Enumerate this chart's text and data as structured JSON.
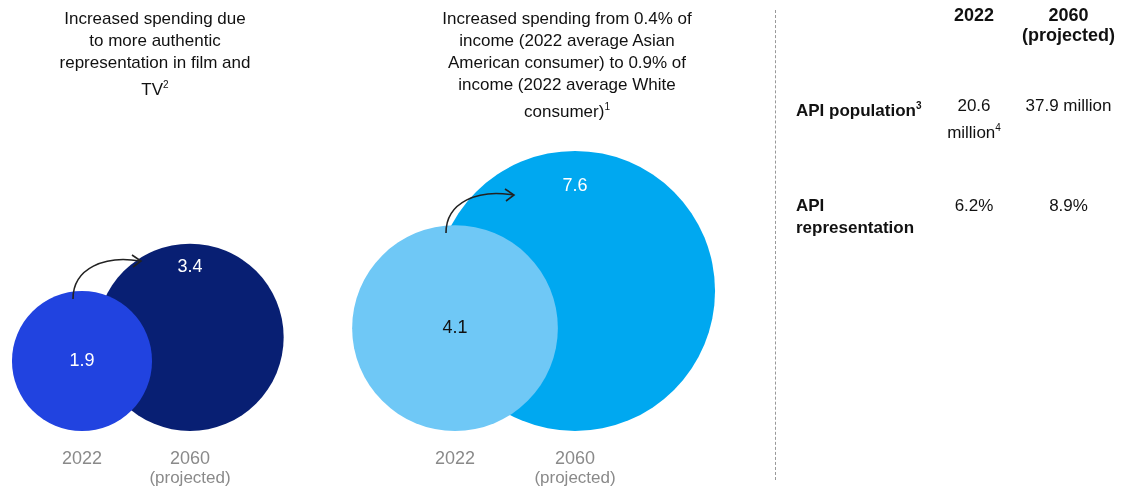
{
  "chart_data": [
    {
      "type": "other",
      "title": "Increased spending due to more authentic representation in film and TV$^{2}$",
      "categories": [
        "2022",
        "2060 (projected)"
      ],
      "values": [
        1.9,
        3.4
      ],
      "colors": [
        "#2143e0",
        "#081f73"
      ],
      "data_labels": true
    },
    {
      "type": "other",
      "title": "Increased spending from 0.4% of income (2022 average Asian American consumer) to 0.9% of income (2022 average White consumer)$^{1}$",
      "categories": [
        "2022",
        "2060 (projected)"
      ],
      "values": [
        4.1,
        7.6
      ],
      "colors": [
        "#6fc8f6",
        "#00a8f0"
      ],
      "data_labels": true
    },
    {
      "type": "other",
      "categories": [
        "2022",
        "2060 (projected)"
      ],
      "y_categories": [
        "API population$^{3}$",
        "API representation"
      ],
      "cell_labels": [
        [
          "20.6 million$^{4}$",
          "37.9 million"
        ],
        [
          "6.2%",
          "8.9%"
        ]
      ]
    }
  ]
}
